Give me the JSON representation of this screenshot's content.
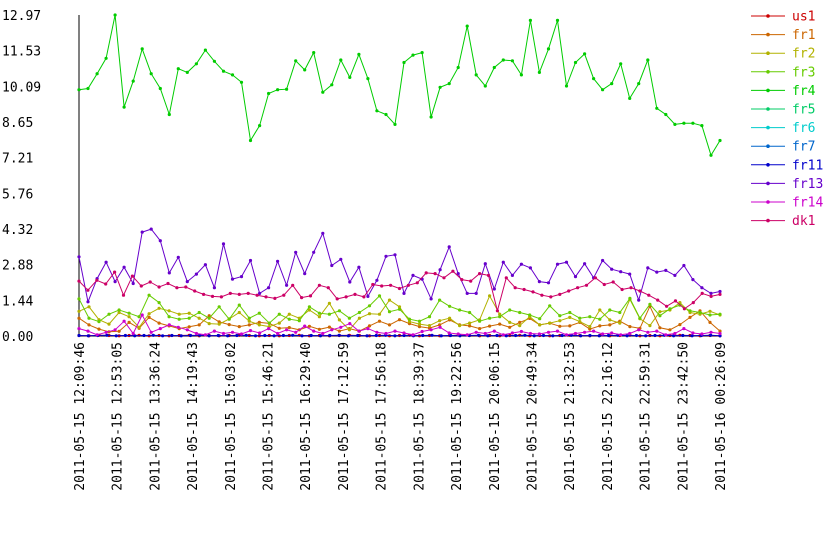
{
  "chart_data": {
    "type": "line",
    "title": "",
    "xlabel": "",
    "ylabel": "",
    "ylim": [
      0,
      12.97
    ],
    "y_ticks": [
      "12.97",
      "11.53",
      "10.09",
      "8.65",
      "7.21",
      "5.76",
      "4.32",
      "2.88",
      "1.44",
      "0.00"
    ],
    "x_ticks": [
      "2011-05-15 12:09:46",
      "2011-05-15 12:53:05",
      "2011-05-15 13:36:24",
      "2011-05-15 14:19:43",
      "2011-05-15 15:03:02",
      "2011-05-15 15:46:21",
      "2011-05-15 16:29:40",
      "2011-05-15 17:12:59",
      "2011-05-15 17:56:18",
      "2011-05-15 18:39:37",
      "2011-05-15 19:22:56",
      "2011-05-15 20:06:15",
      "2011-05-15 20:49:34",
      "2011-05-15 21:32:53",
      "2011-05-15 22:16:12",
      "2011-05-15 22:59:31",
      "2011-05-15 23:42:50",
      "2011-05-16 00:26:09"
    ],
    "grid": false,
    "legend_position": "right",
    "series": [
      {
        "name": "us1",
        "color": "#cc0000",
        "values": [
          0.02,
          0.01,
          0.03,
          0.02,
          0.01,
          0.02,
          0.03,
          0.01,
          0.02,
          0.01,
          0.02,
          0.03,
          0.01,
          0.02,
          0.01,
          0.02,
          0.03,
          0.02,
          0.01,
          0.02,
          0.01,
          0.02,
          0.03,
          0.01,
          0.02,
          0.01,
          0.02,
          0.03,
          0.02,
          0.01,
          0.02,
          0.01,
          0.02,
          0.03,
          0.01,
          0.02,
          0.01,
          0.02,
          0.03,
          0.02,
          0.01,
          0.02,
          0.01,
          0.02,
          0.03,
          0.01,
          0.02,
          0.01,
          0.02,
          0.03,
          0.02,
          0.01,
          0.02,
          0.01,
          0.02,
          0.03,
          0.01,
          0.02,
          0.01,
          0.02,
          0.03,
          0.02,
          0.01,
          0.02,
          0.01
        ]
      },
      {
        "name": "fr1",
        "color": "#cc6600",
        "values": [
          0.72,
          0.45,
          0.28,
          0.17,
          0.19,
          0.55,
          0.31,
          0.75,
          0.52,
          0.41,
          0.3,
          0.37,
          0.45,
          0.82,
          0.57,
          0.46,
          0.38,
          0.45,
          0.55,
          0.51,
          0.31,
          0.34,
          0.25,
          0.39,
          0.27,
          0.36,
          0.2,
          0.3,
          0.2,
          0.41,
          0.6,
          0.45,
          0.66,
          0.5,
          0.38,
          0.32,
          0.45,
          0.65,
          0.45,
          0.41,
          0.3,
          0.4,
          0.48,
          0.35,
          0.55,
          0.71,
          0.45,
          0.52,
          0.39,
          0.41,
          0.55,
          0.28,
          0.41,
          0.45,
          0.6,
          0.38,
          0.31,
          1.2,
          0.33,
          0.25,
          0.46,
          0.75,
          1.02,
          0.55,
          0.2
        ]
      },
      {
        "name": "fr2",
        "color": "#b2b200",
        "values": [
          1.0,
          1.18,
          0.66,
          0.48,
          0.95,
          0.78,
          0.35,
          0.9,
          1.12,
          1.02,
          0.88,
          0.92,
          0.72,
          0.5,
          0.48,
          0.69,
          0.95,
          0.6,
          0.45,
          0.38,
          0.52,
          0.88,
          0.72,
          1.05,
          0.78,
          1.32,
          0.65,
          0.25,
          0.72,
          0.9,
          0.88,
          1.45,
          1.18,
          0.58,
          0.48,
          0.42,
          0.62,
          0.72,
          0.42,
          0.52,
          0.65,
          1.62,
          0.88,
          0.55,
          0.42,
          0.78,
          0.45,
          0.52,
          0.62,
          0.75,
          0.58,
          0.38,
          1.05,
          0.65,
          0.52,
          1.48,
          0.7,
          0.42,
          0.98,
          1.05,
          1.35,
          0.95,
          0.88,
          1.0,
          0.85
        ]
      },
      {
        "name": "fr3",
        "color": "#66cc00",
        "values": [
          1.5,
          0.72,
          0.58,
          0.88,
          1.05,
          0.92,
          0.78,
          1.65,
          1.35,
          0.78,
          0.68,
          0.72,
          0.95,
          0.72,
          1.18,
          0.68,
          1.25,
          0.72,
          0.92,
          0.52,
          0.88,
          0.68,
          0.62,
          1.18,
          0.92,
          0.88,
          1.02,
          0.72,
          0.95,
          1.22,
          1.62,
          0.98,
          1.08,
          0.68,
          0.6,
          0.78,
          1.45,
          1.2,
          1.05,
          0.95,
          0.6,
          0.72,
          0.78,
          1.05,
          0.95,
          0.85,
          0.7,
          1.22,
          0.82,
          0.95,
          0.72,
          0.78,
          0.68,
          1.05,
          0.95,
          1.52,
          0.72,
          1.28,
          0.82,
          1.1,
          1.25,
          1.02,
          0.95,
          0.85,
          0.88
        ]
      },
      {
        "name": "fr4",
        "color": "#00cc00",
        "values": [
          9.95,
          10.0,
          10.6,
          11.22,
          12.97,
          9.25,
          10.3,
          11.6,
          10.6,
          10.0,
          8.95,
          10.8,
          10.65,
          11.0,
          11.55,
          11.1,
          10.7,
          10.55,
          10.25,
          7.9,
          8.5,
          9.8,
          9.95,
          9.97,
          11.12,
          10.75,
          11.45,
          9.85,
          10.15,
          11.15,
          10.45,
          11.38,
          10.4,
          9.1,
          8.95,
          8.55,
          11.05,
          11.35,
          11.45,
          8.85,
          10.05,
          10.2,
          10.85,
          12.52,
          10.55,
          10.1,
          10.85,
          11.15,
          11.12,
          10.55,
          12.75,
          10.65,
          11.6,
          12.75,
          10.1,
          11.05,
          11.4,
          10.4,
          9.95,
          10.2,
          11.0,
          9.6,
          10.2,
          11.15,
          9.2,
          8.95,
          8.55,
          8.6,
          8.6,
          8.5,
          7.3,
          7.9
        ]
      },
      {
        "name": "fr5",
        "color": "#00cc66",
        "values": []
      },
      {
        "name": "fr6",
        "color": "#00cccc",
        "values": []
      },
      {
        "name": "fr7",
        "color": "#0066cc",
        "values": []
      },
      {
        "name": "fr11",
        "color": "#0000cc",
        "values": [
          0.02,
          0.01,
          0.02,
          0.03,
          0.01,
          0.02,
          0.01,
          0.02,
          0.03,
          0.01,
          0.02,
          0.01,
          0.02,
          0.03,
          0.01,
          0.02,
          0.01,
          0.02,
          0.03,
          0.01,
          0.02,
          0.01,
          0.02,
          0.03,
          0.01,
          0.02,
          0.01,
          0.02,
          0.03,
          0.01,
          0.02,
          0.01,
          0.02,
          0.03,
          0.01,
          0.02,
          0.01,
          0.02,
          0.03,
          0.01,
          0.02,
          0.01,
          0.02,
          0.03,
          0.01,
          0.02,
          0.01,
          0.02,
          0.03,
          0.01,
          0.02,
          0.01,
          0.02,
          0.03,
          0.01,
          0.02,
          0.01,
          0.02,
          0.03,
          0.01,
          0.02,
          0.01,
          0.02,
          0.03,
          0.01,
          0.02,
          0.01,
          0.02,
          0.03,
          0.01
        ]
      },
      {
        "name": "fr13",
        "color": "#6600cc",
        "values": [
          3.2,
          1.38,
          2.32,
          2.98,
          2.2,
          2.78,
          2.12,
          4.2,
          4.32,
          3.85,
          2.55,
          3.18,
          2.2,
          2.5,
          2.88,
          1.95,
          3.72,
          2.3,
          2.4,
          3.05,
          1.72,
          1.95,
          3.02,
          2.05,
          3.38,
          2.52,
          3.38,
          4.15,
          2.85,
          3.1,
          2.18,
          2.78,
          1.6,
          2.25,
          3.22,
          3.28,
          1.72,
          2.45,
          2.3,
          1.5,
          2.68,
          3.6,
          2.52,
          1.72,
          1.72,
          2.92,
          1.9,
          2.98,
          2.45,
          2.9,
          2.75,
          2.2,
          2.15,
          2.9,
          2.98,
          2.4,
          2.92,
          2.35,
          3.05,
          2.7,
          2.6,
          2.5,
          1.45,
          2.75,
          2.58,
          2.65,
          2.45,
          2.85,
          2.28,
          1.95,
          1.72,
          1.8
        ]
      },
      {
        "name": "fr14",
        "color": "#cc00cc",
        "values": [
          0.3,
          0.2,
          0.05,
          0.15,
          0.25,
          0.6,
          0.1,
          0.85,
          0.15,
          0.3,
          0.45,
          0.35,
          0.25,
          0.1,
          0.05,
          0.2,
          0.1,
          0.15,
          0.08,
          0.22,
          0.12,
          0.3,
          0.1,
          0.25,
          0.15,
          0.4,
          0.2,
          0.1,
          0.25,
          0.35,
          0.5,
          0.2,
          0.3,
          0.15,
          0.1,
          0.2,
          0.12,
          0.05,
          0.18,
          0.25,
          0.35,
          0.12,
          0.08,
          0.05,
          0.15,
          0.1,
          0.2,
          0.05,
          0.12,
          0.18,
          0.1,
          0.08,
          0.15,
          0.2,
          0.05,
          0.1,
          0.15,
          0.2,
          0.08,
          0.12,
          0.05,
          0.1,
          0.25,
          0.15,
          0.2,
          0.05,
          0.1,
          0.3,
          0.12,
          0.08,
          0.15,
          0.1
        ]
      },
      {
        "name": "dk1",
        "color": "#cc0066",
        "values": [
          2.22,
          1.85,
          2.25,
          2.1,
          2.58,
          1.65,
          2.42,
          2.02,
          2.18,
          1.98,
          2.12,
          1.95,
          1.98,
          1.82,
          1.68,
          1.6,
          1.58,
          1.72,
          1.68,
          1.72,
          1.65,
          1.58,
          1.52,
          1.65,
          2.05,
          1.55,
          1.62,
          2.05,
          1.95,
          1.5,
          1.58,
          1.68,
          1.58,
          2.08,
          2.02,
          2.05,
          1.92,
          2.05,
          2.15,
          2.55,
          2.52,
          2.35,
          2.62,
          2.28,
          2.22,
          2.52,
          2.45,
          1.02,
          2.35,
          1.95,
          1.88,
          1.78,
          1.65,
          1.58,
          1.68,
          1.82,
          1.95,
          2.05,
          2.35,
          2.08,
          2.18,
          1.88,
          1.95,
          1.82,
          1.65,
          1.45,
          1.2,
          1.42,
          1.1,
          1.35,
          1.72,
          1.6,
          1.68
        ]
      }
    ]
  }
}
